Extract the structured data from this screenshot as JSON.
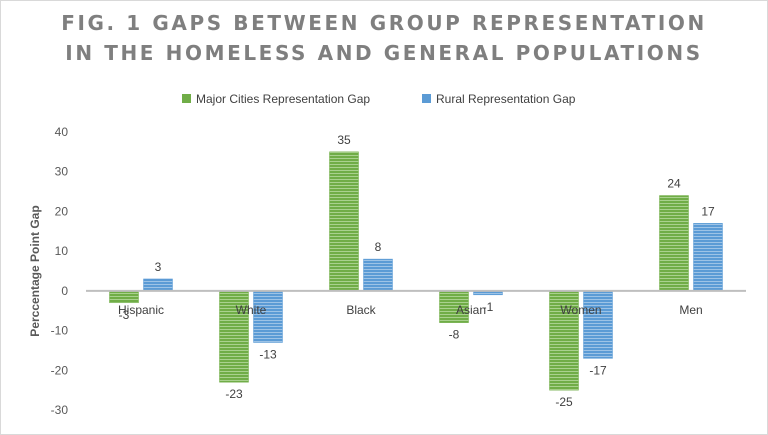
{
  "chart_data": {
    "type": "bar",
    "title_line1": "FIG. 1 GAPS BETWEEN GROUP REPRESENTATION",
    "title_line2": "IN THE HOMELESS AND GENERAL POPULATIONS",
    "ylabel": "Perccentage Point Gap",
    "xlabel": "",
    "ylim": [
      -30,
      40
    ],
    "yticks": [
      40,
      30,
      20,
      10,
      0,
      -10,
      -20,
      -30
    ],
    "categories": [
      "Hispanic",
      "White",
      "Black",
      "Asian",
      "Women",
      "Men"
    ],
    "series": [
      {
        "name": "Major Cities Representation Gap",
        "values": [
          -3,
          -23,
          35,
          -8,
          -25,
          24
        ],
        "color": "#70ad47"
      },
      {
        "name": "Rural Representation Gap",
        "values": [
          3,
          -13,
          8,
          -1,
          -17,
          17
        ],
        "color": "#5b9bd5"
      }
    ],
    "legend_position": "top",
    "grid": false
  }
}
